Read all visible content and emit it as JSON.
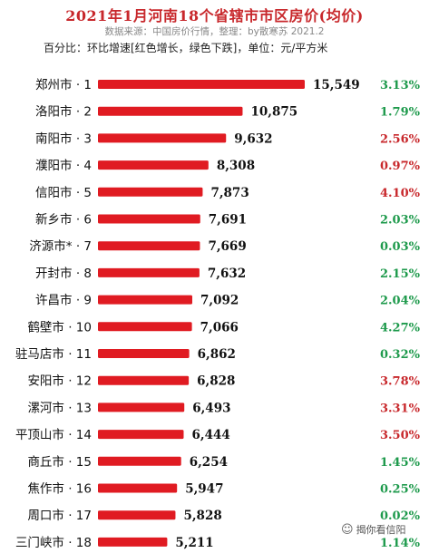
{
  "header": {
    "title": "2021年1月河南18个省辖市市区房价(均价)",
    "source": "数据来源：中国房价行情，整理：by散寒苏 2021.2",
    "note": "百分比：环比增速[红色增长，绿色下跌]，单位：元/平方米"
  },
  "watermark": {
    "icon": "wechat-icon",
    "text": "揭你看信阳"
  },
  "colors": {
    "bar": "#e01b22",
    "increase": "#c8282c",
    "decrease": "#1e9a4c",
    "title": "#c8282c"
  },
  "chart_data": {
    "type": "bar",
    "orientation": "horizontal",
    "title": "2021年1月河南18个省辖市市区房价(均价)",
    "categories": [
      "郑州市 · 1",
      "洛阳市 · 2",
      "南阳市 · 3",
      "濮阳市 · 4",
      "信阳市 · 5",
      "新乡市 · 6",
      "济源市* · 7",
      "开封市 · 8",
      "许昌市 · 9",
      "鹤壁市 · 10",
      "驻马店市 · 11",
      "安阳市 · 12",
      "漯河市 · 13",
      "平顶山市 · 14",
      "商丘市 · 15",
      "焦作市 · 16",
      "周口市 · 17",
      "三门峡市 · 18"
    ],
    "values": [
      15549,
      10875,
      9632,
      8308,
      7873,
      7691,
      7669,
      7632,
      7092,
      7066,
      6862,
      6828,
      6493,
      6444,
      6254,
      5947,
      5828,
      5211
    ],
    "value_labels": [
      "15,549",
      "10,875",
      "9,632",
      "8,308",
      "7,873",
      "7,691",
      "7,669",
      "7,632",
      "7,092",
      "7,066",
      "6,862",
      "6,828",
      "6,493",
      "6,444",
      "6,254",
      "5,947",
      "5,828",
      "5,211"
    ],
    "change_labels": [
      "3.13%",
      "1.79%",
      "2.56%",
      "0.97%",
      "4.10%",
      "2.03%",
      "0.03%",
      "2.15%",
      "2.04%",
      "4.27%",
      "0.32%",
      "3.78%",
      "3.31%",
      "3.50%",
      "1.45%",
      "0.25%",
      "0.02%",
      "1.14%"
    ],
    "change_direction": [
      "down",
      "down",
      "up",
      "up",
      "up",
      "down",
      "down",
      "down",
      "down",
      "down",
      "down",
      "up",
      "up",
      "up",
      "down",
      "down",
      "down",
      "down"
    ],
    "xlim": [
      0,
      15549
    ],
    "grid": false,
    "legend": "none"
  }
}
